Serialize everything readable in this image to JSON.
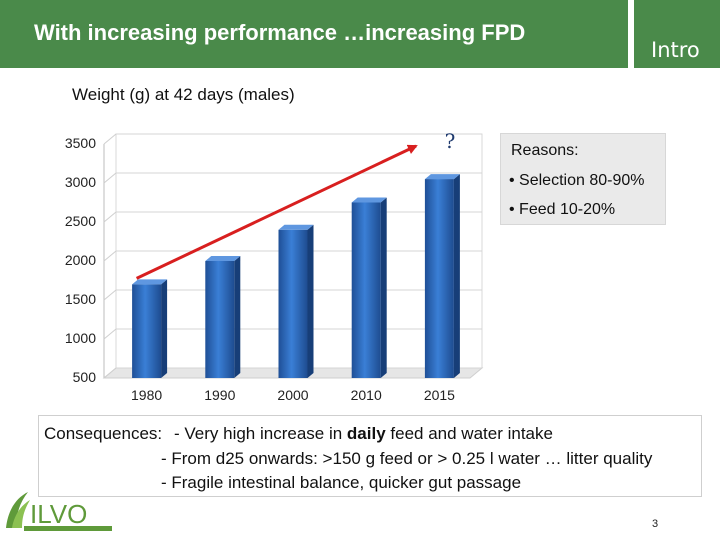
{
  "slide": {
    "title": "With increasing performance …increasing FPD",
    "section_tag": "Intro",
    "page_number": "3"
  },
  "colors": {
    "header_green": "#4a8a4a",
    "bar_blue": "#2f6bc0",
    "arrow_red": "#d81f1f",
    "logo_green": "#5f9a3a"
  },
  "chart_data": {
    "type": "bar",
    "title": "Weight (g) at 42 days (males)",
    "categories": [
      "1980",
      "1990",
      "2000",
      "2010",
      "2015"
    ],
    "values": [
      1700,
      2000,
      2400,
      2750,
      3050
    ],
    "ylim": [
      500,
      3500
    ],
    "yticks": [
      500,
      1000,
      1500,
      2000,
      2500,
      3000,
      3500
    ],
    "grid": true,
    "annotation": "?"
  },
  "reasons": {
    "heading": "Reasons:",
    "items": [
      "• Selection 80-90%",
      "• Feed 10-20%"
    ]
  },
  "consequences": {
    "label": "Consequences:",
    "line1_pre": "-  Very high increase in ",
    "line1_bold": "daily",
    "line1_post": " feed and water intake",
    "line2": "- From d25 onwards: >150 g feed or > 0.25 l water  … litter quality",
    "line3": "- Fragile intestinal balance, quicker gut passage"
  },
  "logo": {
    "text": "ILVO"
  }
}
